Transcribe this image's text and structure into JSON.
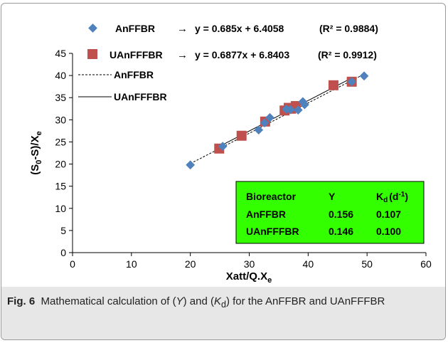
{
  "chart_data": {
    "type": "scatter",
    "xlabel": "Xatt/Q.X",
    "xlabel_sub": "e",
    "ylabel_parts": [
      "(S",
      "0",
      "-S)/X",
      "e"
    ],
    "xlim": [
      0,
      60
    ],
    "ylim": [
      0,
      45
    ],
    "xticks": [
      0,
      10,
      20,
      30,
      40,
      50,
      60
    ],
    "yticks": [
      0,
      5,
      10,
      15,
      20,
      25,
      30,
      35,
      40,
      45
    ],
    "grid": false,
    "series": [
      {
        "name": "AnFFBR",
        "marker": "diamond",
        "color": "#4f81bd",
        "x": [
          20.0,
          25.5,
          31.6,
          32.6,
          33.5,
          36.3,
          37.0,
          38.3,
          39.1,
          39.4,
          47.4,
          49.5
        ],
        "y": [
          19.8,
          24.0,
          27.7,
          29.3,
          30.5,
          32.4,
          32.3,
          32.2,
          34.1,
          33.4,
          38.6,
          39.9
        ],
        "fit": {
          "slope": 0.685,
          "intercept": 6.4058,
          "x_range": [
            20.0,
            49.5
          ],
          "style": "dashed"
        },
        "legend_line": "y = 0.685x + 6.4058",
        "legend_r2": "(R² = 0.9884)",
        "line_legend": "AnFFBR"
      },
      {
        "name": "UAnFFFBR",
        "marker": "square",
        "color": "#c0504d",
        "x": [
          24.9,
          28.7,
          32.7,
          36.0,
          36.7,
          37.1,
          37.9,
          44.3,
          47.4
        ],
        "y": [
          23.5,
          26.4,
          29.6,
          32.1,
          32.7,
          32.5,
          33.1,
          37.8,
          38.6
        ],
        "fit": {
          "slope": 0.6877,
          "intercept": 6.8403,
          "x_range": [
            24.9,
            47.4
          ],
          "style": "solid"
        },
        "legend_line": "y = 0.6877x + 6.8403",
        "legend_r2": "(R² = 0.9912)",
        "line_legend": "UAnFFFBR"
      }
    ],
    "legend_arrow": "→",
    "table": {
      "background": "#33ff00",
      "header": [
        "Bioreactor",
        "Y",
        "K",
        "d",
        "(d",
        "-1",
        ")"
      ],
      "rows": [
        [
          "AnFFBR",
          "0.156",
          "0.107"
        ],
        [
          "UAnFFFBR",
          "0.146",
          "0.100"
        ]
      ]
    }
  },
  "caption": {
    "label": "Fig. 6",
    "text_1": "Mathematical calculation of (",
    "y_symbol": "Y",
    "text_2": ") and (",
    "k_symbol": "K",
    "k_sub": "d",
    "text_3": ") for the AnFFBR and UAnFFFBR"
  }
}
